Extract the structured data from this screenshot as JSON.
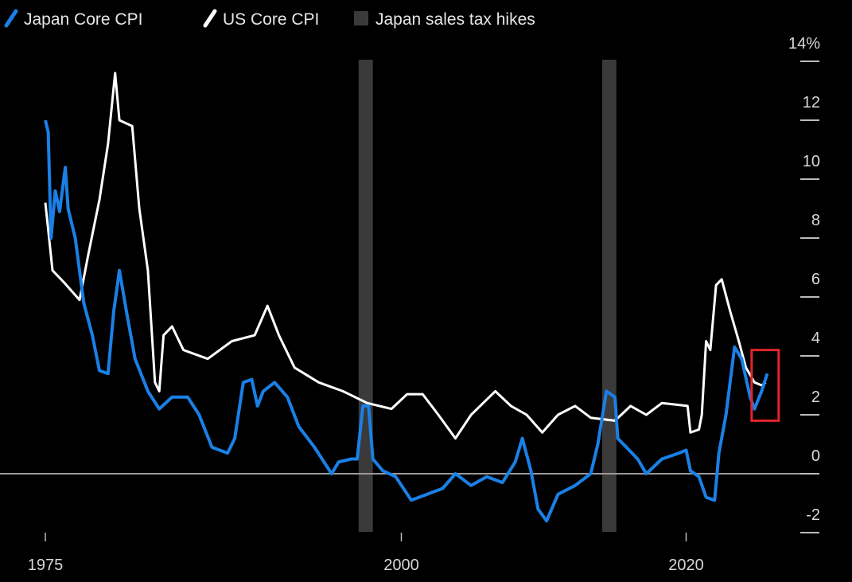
{
  "chart_data": {
    "type": "line",
    "title": "",
    "xlabel": "",
    "ylabel": "",
    "xlim": [
      1975,
      2026.5
    ],
    "ylim": [
      -2.5,
      14.5
    ],
    "x_ticks": [
      1975,
      2000,
      2020
    ],
    "x_tick_labels": [
      "1975",
      "2000",
      "2020"
    ],
    "y_ticks": [
      14,
      12,
      10,
      8,
      6,
      4,
      2,
      0,
      -2
    ],
    "y_tick_labels": [
      "14%",
      "12",
      "10",
      "8",
      "6",
      "4",
      "2",
      "0",
      "-2"
    ],
    "legend_position": "top-left",
    "legend": [
      {
        "label": "Japan Core CPI",
        "color": "#1a80e6",
        "kind": "line"
      },
      {
        "label": "US Core CPI",
        "color": "#ffffff",
        "kind": "line"
      },
      {
        "label": "Japan sales tax hikes",
        "color": "#3a3a3a",
        "kind": "band"
      }
    ],
    "zero_line": {
      "value": 0,
      "color": "#9a9a9a"
    },
    "bands": [
      {
        "name": "Japan sales tax hikes",
        "x_start": 1997.0,
        "x_end": 1998.0,
        "color": "#3a3a3a"
      },
      {
        "name": "Japan sales tax hikes",
        "x_start": 2014.1,
        "x_end": 2015.1,
        "color": "#3a3a3a"
      }
    ],
    "highlight_box": {
      "x_start": 2024.6,
      "x_end": 2026.5,
      "y_start": 1.8,
      "y_end": 4.2,
      "color": "#e0252b"
    },
    "series": [
      {
        "name": "Japan Core CPI",
        "color": "#1a80e6",
        "x": [
          1975.0,
          1975.2,
          1975.4,
          1975.7,
          1976.0,
          1976.4,
          1976.6,
          1977.1,
          1977.7,
          1978.3,
          1978.8,
          1979.4,
          1979.8,
          1980.2,
          1980.7,
          1981.3,
          1982.2,
          1983.0,
          1983.9,
          1985.0,
          1985.8,
          1986.7,
          1987.8,
          1988.3,
          1988.9,
          1989.5,
          1989.9,
          1990.3,
          1991.1,
          1992.0,
          1992.8,
          1993.9,
          1995.1,
          1995.6,
          1996.5,
          1996.9,
          1997.3,
          1997.7,
          1998.0,
          1998.7,
          1999.6,
          2000.7,
          2001.8,
          2002.9,
          2003.8,
          2004.9,
          2006.0,
          2007.1,
          2008.0,
          2008.5,
          2009.1,
          2009.6,
          2010.2,
          2011.0,
          2012.2,
          2013.3,
          2013.8,
          2014.4,
          2015.0,
          2015.2,
          2015.8,
          2016.6,
          2017.2,
          2018.3,
          2019.5,
          2020.0,
          2020.3,
          2020.9,
          2021.4,
          2022.0,
          2022.3,
          2022.8,
          2023.4,
          2023.9,
          2024.5,
          2024.8,
          2025.3,
          2025.7
        ],
        "y": [
          12.0,
          11.6,
          8.0,
          9.6,
          8.9,
          10.4,
          9.0,
          8.0,
          5.8,
          4.7,
          3.5,
          3.4,
          5.5,
          6.9,
          5.5,
          3.9,
          2.8,
          2.2,
          2.6,
          2.6,
          2.0,
          0.9,
          0.7,
          1.2,
          3.1,
          3.2,
          2.3,
          2.8,
          3.1,
          2.6,
          1.6,
          0.9,
          0.0,
          0.4,
          0.5,
          0.5,
          2.3,
          2.3,
          0.5,
          0.1,
          -0.1,
          -0.9,
          -0.7,
          -0.5,
          0.0,
          -0.4,
          -0.1,
          -0.3,
          0.4,
          1.2,
          0.1,
          -1.2,
          -1.6,
          -0.7,
          -0.4,
          0.0,
          1.0,
          2.8,
          2.6,
          1.2,
          0.9,
          0.5,
          0.0,
          0.5,
          0.7,
          0.8,
          0.1,
          -0.1,
          -0.8,
          -0.9,
          0.7,
          2.0,
          4.3,
          3.9,
          2.6,
          2.2,
          2.8,
          3.4
        ]
      },
      {
        "name": "US Core CPI",
        "color": "#ffffff",
        "x": [
          1975.0,
          1975.5,
          1976.3,
          1977.4,
          1978.0,
          1978.8,
          1979.4,
          1979.9,
          1980.2,
          1981.1,
          1981.6,
          1982.2,
          1982.7,
          1983.0,
          1983.3,
          1983.9,
          1984.7,
          1986.4,
          1988.1,
          1989.7,
          1990.6,
          1991.4,
          1992.5,
          1994.2,
          1995.9,
          1997.6,
          1999.3,
          2000.4,
          2001.5,
          2002.6,
          2003.8,
          2004.9,
          2006.6,
          2007.7,
          2008.8,
          2009.9,
          2011.0,
          2012.2,
          2013.3,
          2015.0,
          2016.1,
          2017.2,
          2018.3,
          2020.1,
          2020.3,
          2020.9,
          2021.1,
          2021.4,
          2021.7,
          2022.1,
          2022.5,
          2023.1,
          2023.7,
          2024.2,
          2024.8,
          2025.3,
          2025.6
        ],
        "y": [
          9.2,
          6.9,
          6.5,
          5.9,
          7.4,
          9.3,
          11.2,
          13.6,
          12.0,
          11.8,
          9.0,
          6.9,
          3.1,
          2.8,
          4.7,
          5.0,
          4.2,
          3.9,
          4.5,
          4.7,
          5.7,
          4.7,
          3.6,
          3.1,
          2.8,
          2.4,
          2.2,
          2.7,
          2.7,
          2.0,
          1.2,
          2.0,
          2.8,
          2.3,
          2.0,
          1.4,
          2.0,
          2.3,
          1.9,
          1.8,
          2.3,
          2.0,
          2.4,
          2.3,
          1.4,
          1.5,
          2.0,
          4.5,
          4.2,
          6.4,
          6.6,
          5.5,
          4.5,
          3.6,
          3.1,
          3.0,
          3.1
        ]
      }
    ]
  }
}
